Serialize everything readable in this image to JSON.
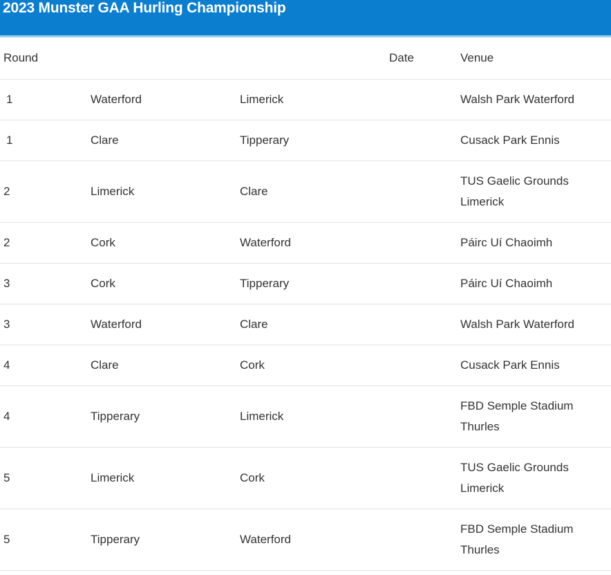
{
  "title": "2023 Munster GAA Hurling Championship",
  "columns": {
    "round": "Round",
    "home": "",
    "away": "",
    "date": "Date",
    "venue": "Venue"
  },
  "fixtures": [
    {
      "round": "1",
      "home": "Waterford",
      "away": "Limerick",
      "date": "",
      "venue": "Walsh Park Waterford"
    },
    {
      "round": "1",
      "home": "Clare",
      "away": "Tipperary",
      "date": "",
      "venue": "Cusack Park Ennis"
    },
    {
      "round": "2",
      "home": "Limerick",
      "away": "Clare",
      "date": "",
      "venue": "TUS Gaelic Grounds Limerick"
    },
    {
      "round": "2",
      "home": "Cork",
      "away": "Waterford",
      "date": "",
      "venue": "Páirc Uí Chaoimh"
    },
    {
      "round": "3",
      "home": "Cork",
      "away": "Tipperary",
      "date": "",
      "venue": "Páirc Uí Chaoimh"
    },
    {
      "round": "3",
      "home": "Waterford",
      "away": "Clare",
      "date": "",
      "venue": "Walsh Park Waterford"
    },
    {
      "round": "4",
      "home": "Clare",
      "away": "Cork",
      "date": "",
      "venue": "Cusack Park Ennis"
    },
    {
      "round": "4",
      "home": "Tipperary",
      "away": "Limerick",
      "date": "",
      "venue": "FBD Semple Stadium Thurles"
    },
    {
      "round": "5",
      "home": "Limerick",
      "away": "Cork",
      "date": "",
      "venue": "TUS Gaelic Grounds Limerick"
    },
    {
      "round": "5",
      "home": "Tipperary",
      "away": "Waterford",
      "date": "",
      "venue": "FBD Semple Stadium Thurles"
    }
  ]
}
